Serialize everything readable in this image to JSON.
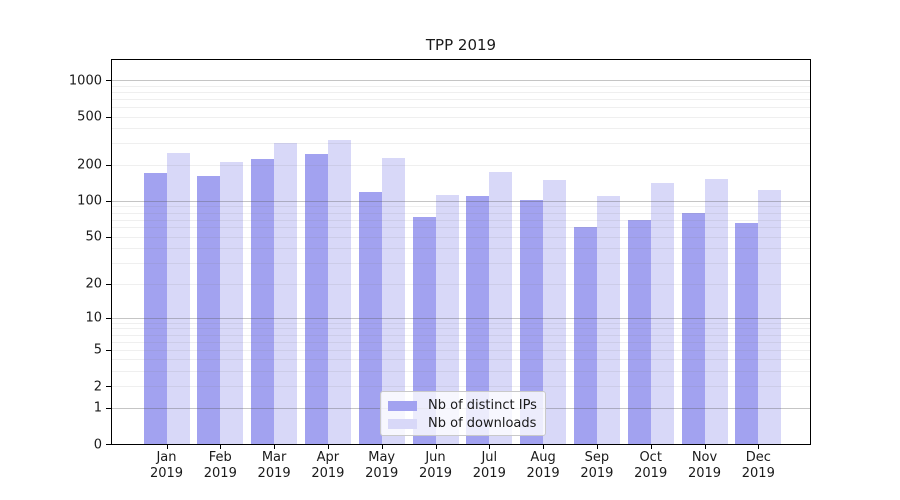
{
  "chart_data": {
    "type": "bar",
    "title": "TPP 2019",
    "categories": [
      "Jan 2019",
      "Feb 2019",
      "Mar 2019",
      "Apr 2019",
      "May 2019",
      "Jun 2019",
      "Jul 2019",
      "Aug 2019",
      "Sep 2019",
      "Oct 2019",
      "Nov 2019",
      "Dec 2019"
    ],
    "series": [
      {
        "name": "Nb of distinct IPs",
        "color": "#a2a2f0",
        "values": [
          170,
          160,
          221,
          245,
          118,
          74,
          109,
          101,
          60,
          69,
          79,
          66
        ]
      },
      {
        "name": "Nb of downloads",
        "color": "#d8d8f8",
        "values": [
          251,
          211,
          300,
          320,
          228,
          113,
          175,
          148,
          110,
          141,
          153,
          124
        ]
      }
    ],
    "y_ticks": [
      0,
      1,
      2,
      5,
      10,
      20,
      50,
      100,
      200,
      500,
      1000
    ],
    "y_scale": "log10(value+1)",
    "ylim": [
      0,
      1464
    ],
    "xlabel": "",
    "ylabel": "",
    "grid": true,
    "legend_position": "lower center",
    "colors": {
      "grid_major": "rgba(90,90,90,0.35)",
      "grid_minor": "rgba(120,120,120,0.12)",
      "frame": "#000000",
      "text": "#1a1a1a"
    }
  }
}
